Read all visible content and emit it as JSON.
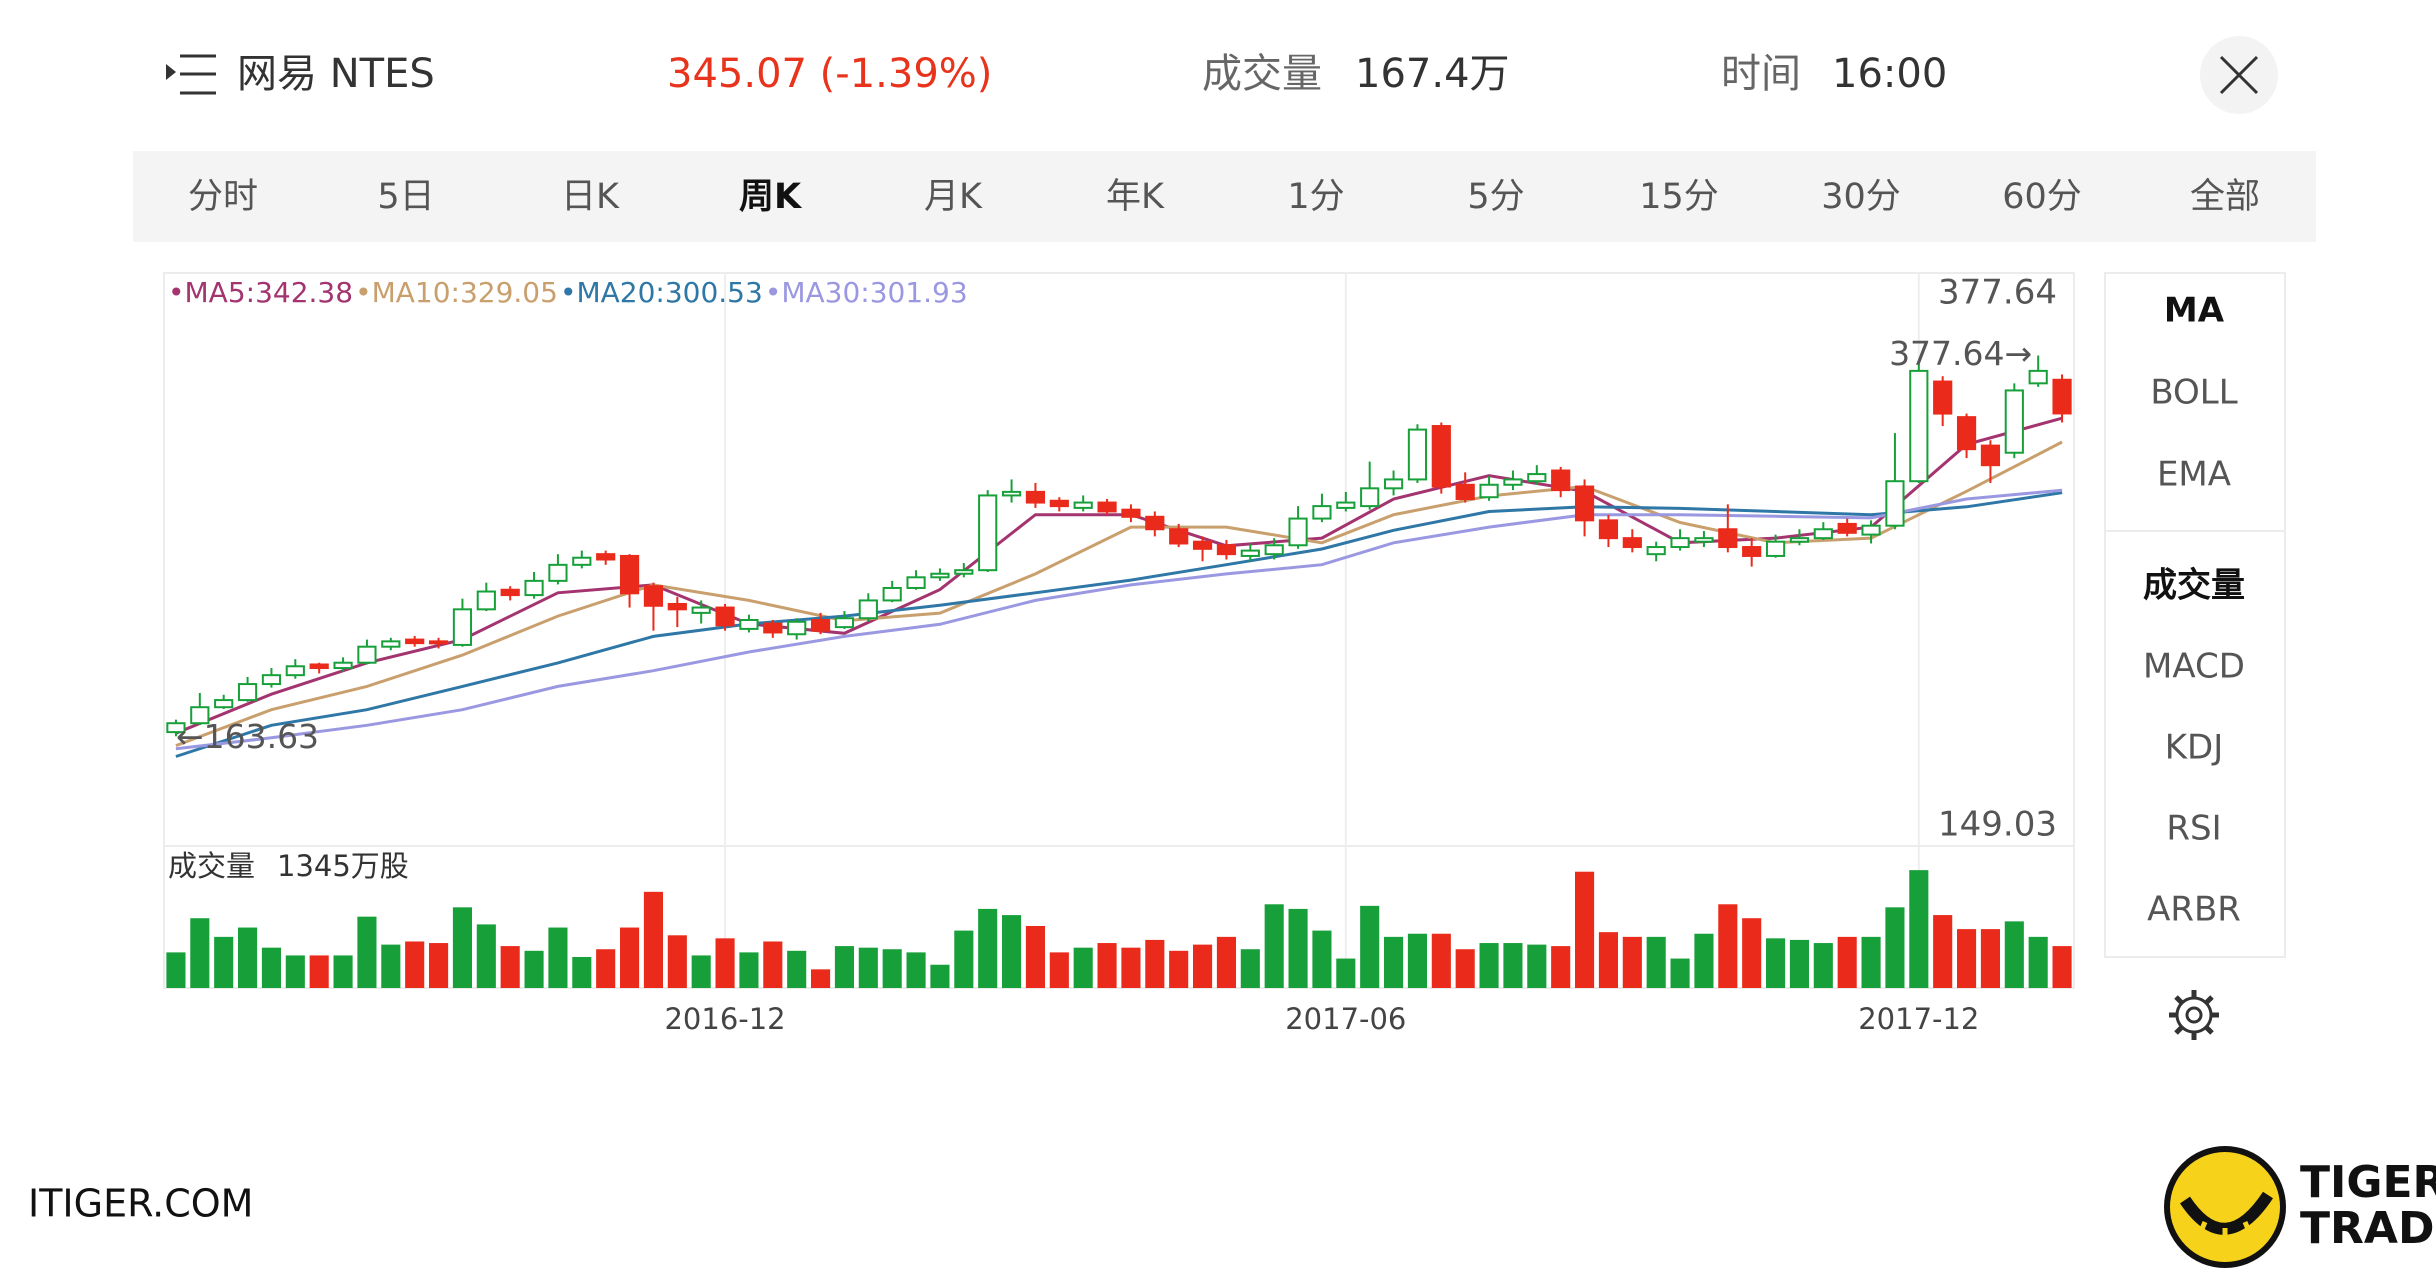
{
  "header": {
    "title": "网易 NTES",
    "price": "345.07 (-1.39%)",
    "volume_label": "成交量",
    "volume": "167.4万",
    "time_label": "时间",
    "time": "16:00"
  },
  "tabs": [
    "分时",
    "5日",
    "日K",
    "周K",
    "月K",
    "年K",
    "1分",
    "5分",
    "15分",
    "30分",
    "60分",
    "全部"
  ],
  "selected_tab": 3,
  "indicators": {
    "main": [
      "MA",
      "BOLL",
      "EMA"
    ],
    "sub": [
      "成交量",
      "MACD",
      "KDJ",
      "RSI",
      "ARBR"
    ],
    "active_main": 0,
    "active_sub": 0
  },
  "footer": {
    "site": "ITIGER.COM",
    "logo_top": "TIGER",
    "logo_bottom": "TRADE"
  },
  "chart_data": {
    "type": "candlestick",
    "categories": [
      null,
      null,
      null,
      null,
      null,
      null,
      null,
      null,
      null,
      null,
      null,
      null,
      null,
      null,
      null,
      null,
      null,
      null,
      null,
      null,
      null,
      null,
      null,
      "2016-12",
      null,
      null,
      null,
      null,
      null,
      null,
      null,
      null,
      null,
      null,
      null,
      null,
      null,
      null,
      null,
      null,
      null,
      null,
      null,
      null,
      null,
      null,
      null,
      null,
      null,
      "2017-06",
      null,
      null,
      null,
      null,
      null,
      null,
      null,
      null,
      null,
      null,
      null,
      null,
      null,
      null,
      null,
      null,
      null,
      null,
      null,
      null,
      null,
      null,
      null,
      "2017-12",
      null,
      null,
      null,
      null,
      null,
      null
    ],
    "open": [
      166,
      171,
      180,
      184,
      193,
      198,
      204,
      202,
      205,
      214,
      218,
      217,
      215,
      235,
      246,
      243,
      251,
      260,
      266,
      265,
      248,
      238,
      233,
      236,
      224,
      227,
      221,
      229,
      225,
      230,
      240,
      247,
      253,
      255,
      257,
      299,
      301,
      296,
      292,
      295,
      291,
      287,
      280,
      273,
      271,
      265,
      266,
      271,
      286,
      292,
      293,
      303,
      308,
      338,
      305,
      298,
      305,
      307,
      313,
      304,
      285,
      275,
      266,
      270,
      273,
      280,
      270,
      265,
      273,
      275,
      283,
      277,
      282,
      307,
      363,
      343,
      327,
      323,
      362,
      364
    ],
    "high": [
      173,
      188,
      187,
      197,
      202,
      207,
      205,
      208,
      218,
      219,
      220,
      219,
      241,
      250,
      248,
      256,
      266,
      268,
      268,
      266,
      250,
      242,
      240,
      238,
      232,
      229,
      230,
      233,
      234,
      244,
      251,
      257,
      258,
      261,
      302,
      308,
      306,
      298,
      299,
      297,
      294,
      290,
      283,
      276,
      274,
      272,
      275,
      293,
      300,
      301,
      318,
      313,
      339,
      340,
      312,
      310,
      313,
      316,
      315,
      308,
      288,
      280,
      273,
      280,
      279,
      294,
      275,
      277,
      280,
      284,
      286,
      285,
      334,
      373,
      366,
      345,
      330,
      362,
      377.64,
      367
    ],
    "low": [
      163.63,
      170,
      179,
      183,
      191,
      196,
      199,
      200,
      204,
      212,
      214,
      213,
      214,
      234,
      240,
      241,
      249,
      258,
      260,
      236,
      223,
      225,
      227,
      223,
      222,
      219,
      218,
      221,
      224,
      228,
      239,
      246,
      251,
      253,
      256,
      295,
      292,
      290,
      290,
      288,
      284,
      276,
      270,
      262,
      263,
      262,
      263,
      269,
      284,
      290,
      291,
      299,
      306,
      300,
      295,
      296,
      302,
      305,
      298,
      276,
      270,
      267,
      262,
      268,
      270,
      267,
      259,
      264,
      271,
      274,
      276,
      272,
      280,
      306,
      338,
      320,
      306,
      320,
      360,
      340
    ],
    "close": [
      171,
      180,
      184,
      193,
      198,
      203,
      202,
      205,
      214,
      217,
      216,
      216,
      235,
      245,
      243,
      251,
      260,
      264,
      263,
      244,
      237,
      235,
      236,
      226,
      229,
      222,
      228,
      223,
      230,
      240,
      247,
      253,
      255,
      257,
      299,
      301,
      295,
      293,
      295,
      290,
      287,
      280,
      272,
      269,
      266,
      268,
      271,
      286,
      293,
      295,
      303,
      308,
      336,
      304,
      297,
      305,
      308,
      311,
      302,
      285,
      275,
      270,
      270,
      275,
      275,
      270,
      265,
      273,
      275,
      280,
      278,
      282,
      307,
      369,
      345,
      325,
      316,
      358,
      369,
      345.07
    ],
    "ylim": [
      102,
      424
    ],
    "max_label": "377.64",
    "min_label": "149.03",
    "high_annotation": "377.64→",
    "low_annotation": "←163.63",
    "up_color": "#17a03a",
    "down_color": "#ea2a1a",
    "ma": [
      {
        "name": "MA5",
        "legend": "•MA5:342.38",
        "color": "#a3346f",
        "x": [
          0,
          4,
          8,
          12,
          16,
          20,
          24,
          28,
          32,
          36,
          40,
          44,
          48,
          51,
          55,
          59,
          63,
          67,
          71,
          75,
          79
        ],
        "values": [
          165.4,
          187.3,
          204.9,
          218.0,
          244.3,
          248.7,
          226.8,
          221.5,
          246.1,
          288.2,
          288.2,
          270.7,
          275.0,
          297.0,
          310.1,
          301.3,
          272.4,
          275.0,
          281.2,
          327.7,
          342.38
        ]
      },
      {
        "name": "MA10",
        "legend": "•MA10:329.05",
        "color": "#c9a06d",
        "x": [
          0,
          4,
          8,
          12,
          16,
          20,
          24,
          28,
          32,
          36,
          40,
          44,
          48,
          51,
          55,
          59,
          63,
          67,
          71,
          75,
          79
        ],
        "values": [
          158.4,
          178.6,
          191.7,
          209.3,
          231.2,
          248.7,
          240.0,
          228.6,
          232.9,
          254.9,
          281.2,
          281.2,
          272.4,
          288.2,
          298.7,
          304.0,
          283.8,
          272.4,
          275.0,
          301.3,
          329.05
        ]
      },
      {
        "name": "MA20",
        "legend": "•MA20:300.53",
        "color": "#2f77a6",
        "x": [
          0,
          4,
          8,
          12,
          16,
          20,
          24,
          28,
          32,
          36,
          40,
          44,
          48,
          51,
          55,
          59,
          63,
          67,
          71,
          75,
          79
        ],
        "values": [
          152.3,
          169.8,
          178.6,
          191.7,
          204.9,
          219.8,
          226.8,
          231.2,
          237.3,
          244.3,
          251.4,
          260.1,
          268.9,
          279.4,
          290.0,
          292.6,
          291.7,
          290.0,
          288.2,
          292.6,
          300.53
        ]
      },
      {
        "name": "MA30",
        "legend": "•MA30:301.93",
        "color": "#9b98e2",
        "x": [
          0,
          4,
          8,
          12,
          16,
          20,
          24,
          28,
          32,
          36,
          40,
          44,
          48,
          51,
          55,
          59,
          63,
          67,
          71,
          75,
          79
        ],
        "values": [
          156.6,
          162.8,
          169.8,
          178.6,
          191.7,
          200.5,
          211.0,
          219.8,
          226.6,
          240.0,
          248.7,
          254.9,
          260.1,
          272.4,
          281.2,
          288.2,
          288.2,
          287.3,
          286.4,
          297.0,
          301.93
        ]
      }
    ],
    "volume": {
      "title": "成交量",
      "value_label": "1345万股",
      "ylim": [
        0,
        1345
      ],
      "values": [
        363,
        711,
        521,
        616,
        411,
        332,
        332,
        332,
        727,
        442,
        474,
        458,
        822,
        648,
        427,
        379,
        616,
        316,
        395,
        616,
        980,
        537,
        332,
        506,
        363,
        474,
        379,
        190,
        427,
        411,
        395,
        363,
        237,
        585,
        806,
        743,
        632,
        363,
        411,
        458,
        411,
        490,
        379,
        442,
        521,
        395,
        853,
        806,
        585,
        300,
        837,
        521,
        553,
        553,
        395,
        458,
        458,
        442,
        427,
        1185,
        569,
        521,
        521,
        300,
        553,
        853,
        711,
        506,
        490,
        458,
        521,
        521,
        822,
        1201,
        743,
        600,
        600,
        679,
        521,
        427
      ]
    }
  }
}
